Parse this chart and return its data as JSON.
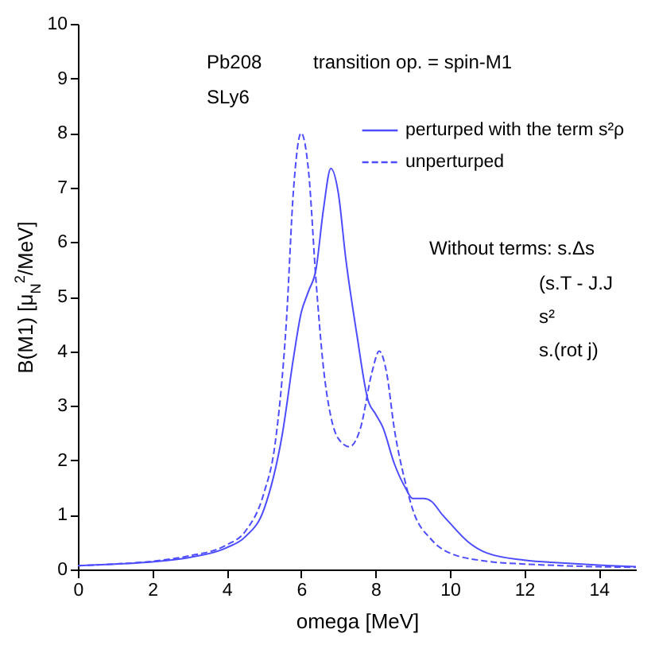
{
  "chart_data": {
    "type": "line",
    "xlabel": "omega [MeV]",
    "ylabel": "B(M1) [μ$_{N}$$^{2}$/MeV]",
    "annotations": [
      "Pb208",
      "SLy6",
      "transition op. = spin-M1",
      "Without terms: s.Δs",
      "(s.T - J.J",
      "s²",
      "s.(rot j)"
    ],
    "xlim": [
      0,
      15
    ],
    "xticks": [
      0,
      2,
      4,
      6,
      8,
      10,
      12,
      14
    ],
    "ylim": [
      0,
      10
    ],
    "yticks": [
      0,
      1,
      2,
      3,
      4,
      5,
      6,
      7,
      8,
      9,
      10
    ],
    "grid": false,
    "legend": "top right",
    "series": [
      {
        "name": "perturped with the term s²ρ",
        "color": "#4d4dff",
        "line_style": "solid",
        "x": [
          0,
          1,
          2,
          3,
          4,
          4.5,
          5,
          5.5,
          5.8,
          6,
          6.2,
          6.4,
          6.6,
          6.8,
          7,
          7.2,
          7.5,
          7.8,
          8,
          8.2,
          8.5,
          8.8,
          9,
          9.3,
          9.5,
          9.8,
          10,
          10.5,
          11,
          12,
          13,
          14,
          15
        ],
        "values": [
          0.07,
          0.1,
          0.14,
          0.22,
          0.4,
          0.6,
          1.1,
          2.5,
          3.9,
          4.7,
          5.1,
          5.5,
          6.6,
          7.35,
          6.9,
          5.7,
          4.3,
          3.1,
          2.85,
          2.6,
          1.95,
          1.5,
          1.3,
          1.3,
          1.25,
          1.0,
          0.85,
          0.5,
          0.3,
          0.17,
          0.12,
          0.08,
          0.05
        ]
      },
      {
        "name": "unperturped",
        "color": "#4d4dff",
        "line_style": "dashed",
        "x": [
          0,
          1,
          2,
          3,
          4,
          4.5,
          5,
          5.3,
          5.6,
          5.8,
          6,
          6.2,
          6.4,
          6.6,
          6.8,
          7,
          7.3,
          7.6,
          7.9,
          8.1,
          8.3,
          8.5,
          8.8,
          9,
          9.5,
          10,
          11,
          12,
          13,
          14,
          15
        ],
        "values": [
          0.07,
          0.1,
          0.15,
          0.25,
          0.45,
          0.7,
          1.4,
          2.3,
          4.5,
          7.0,
          8.0,
          7.3,
          5.3,
          3.7,
          2.8,
          2.4,
          2.25,
          2.6,
          3.6,
          4.0,
          3.6,
          2.6,
          1.6,
          1.1,
          0.55,
          0.3,
          0.15,
          0.1,
          0.07,
          0.05,
          0.04
        ]
      }
    ]
  }
}
